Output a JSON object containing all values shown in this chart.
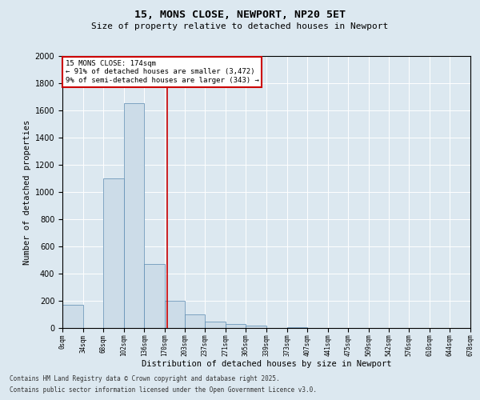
{
  "title": "15, MONS CLOSE, NEWPORT, NP20 5ET",
  "subtitle": "Size of property relative to detached houses in Newport",
  "xlabel": "Distribution of detached houses by size in Newport",
  "ylabel": "Number of detached properties",
  "bar_color": "#ccdce8",
  "bar_edge_color": "#5a8ab0",
  "vline_x": 174,
  "vline_color": "#cc0000",
  "annotation_title": "15 MONS CLOSE: 174sqm",
  "annotation_line1": "← 91% of detached houses are smaller (3,472)",
  "annotation_line2": "9% of semi-detached houses are larger (343) →",
  "annotation_box_color": "#cc0000",
  "footnote1": "Contains HM Land Registry data © Crown copyright and database right 2025.",
  "footnote2": "Contains public sector information licensed under the Open Government Licence v3.0.",
  "background_color": "#dce8f0",
  "plot_bg_color": "#dce8f0",
  "ylim": [
    0,
    2000
  ],
  "bin_edges": [
    0,
    34,
    68,
    102,
    136,
    170,
    203,
    237,
    271,
    305,
    339,
    373,
    407,
    441,
    475,
    509,
    542,
    576,
    610,
    644,
    678
  ],
  "bin_labels": [
    "0sqm",
    "34sqm",
    "68sqm",
    "102sqm",
    "136sqm",
    "170sqm",
    "203sqm",
    "237sqm",
    "271sqm",
    "305sqm",
    "339sqm",
    "373sqm",
    "407sqm",
    "441sqm",
    "475sqm",
    "509sqm",
    "542sqm",
    "576sqm",
    "610sqm",
    "644sqm",
    "678sqm"
  ],
  "bar_heights": [
    170,
    0,
    1100,
    1650,
    470,
    200,
    100,
    50,
    30,
    20,
    0,
    5,
    0,
    0,
    0,
    0,
    0,
    0,
    0,
    0
  ],
  "yticks": [
    0,
    200,
    400,
    600,
    800,
    1000,
    1200,
    1400,
    1600,
    1800,
    2000
  ]
}
